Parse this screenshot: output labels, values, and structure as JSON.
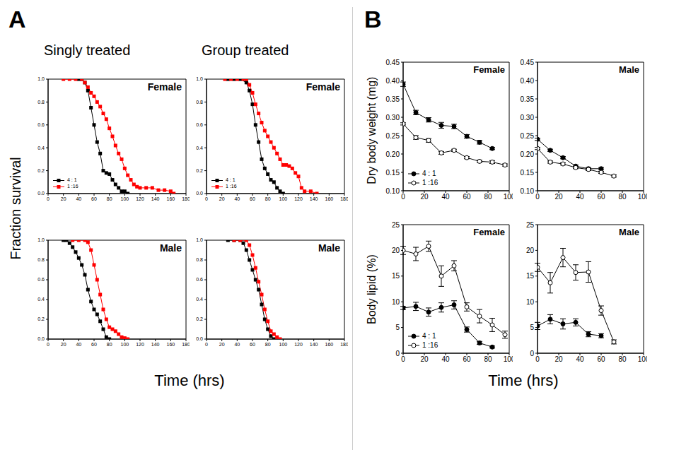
{
  "figure": {
    "panels": [
      {
        "label": "A",
        "column_titles": [
          "Singly treated",
          "Group treated"
        ],
        "y_label": "Fraction survival",
        "x_label": "Time (hrs)"
      },
      {
        "label": "B",
        "y_labels": [
          "Dry body weight (mg)",
          "Body lipid (%)"
        ],
        "x_label": "Time (hrs)"
      }
    ]
  },
  "chart_data": [
    {
      "type": "line",
      "title": "Female",
      "xlim": [
        0,
        180
      ],
      "xticks": [
        0,
        20,
        40,
        60,
        80,
        100,
        120,
        140,
        160,
        180
      ],
      "ylim": [
        0,
        1
      ],
      "yticks": [
        {
          "value": 0,
          "label": "0.0"
        },
        0.2,
        0.4,
        0.6,
        0.8,
        {
          "value": 1,
          "label": "1.0"
        }
      ],
      "legend": "lower left",
      "series": [
        {
          "name": "4 : 1",
          "color": "#000000",
          "marker": "square",
          "x": [
            40,
            44,
            48,
            52,
            56,
            60,
            64,
            68,
            72,
            76,
            80,
            84,
            88,
            92,
            96,
            100,
            104
          ],
          "values": [
            1,
            1,
            0.97,
            0.9,
            0.75,
            0.6,
            0.45,
            0.35,
            0.2,
            0.18,
            0.17,
            0.12,
            0.08,
            0.05,
            0.02,
            0.02,
            0
          ]
        },
        {
          "name": "1 :16",
          "color": "#ff0000",
          "marker": "square",
          "x": [
            20,
            28,
            36,
            44,
            48,
            52,
            56,
            60,
            64,
            68,
            72,
            76,
            80,
            84,
            88,
            92,
            96,
            100,
            104,
            108,
            112,
            116,
            120,
            128,
            136,
            144,
            152,
            160,
            164
          ],
          "values": [
            1,
            1,
            1,
            1,
            0.97,
            0.93,
            0.88,
            0.85,
            0.8,
            0.76,
            0.7,
            0.65,
            0.57,
            0.5,
            0.42,
            0.35,
            0.3,
            0.22,
            0.16,
            0.12,
            0.08,
            0.06,
            0.05,
            0.05,
            0.05,
            0.03,
            0.03,
            0.02,
            0
          ]
        }
      ]
    },
    {
      "type": "line",
      "title": "Female",
      "xlim": [
        0,
        180
      ],
      "xticks": [
        0,
        20,
        40,
        60,
        80,
        100,
        120,
        140,
        160,
        180
      ],
      "ylim": [
        0,
        1
      ],
      "yticks": [
        {
          "value": 0,
          "label": "0.0"
        },
        0.2,
        0.4,
        0.6,
        0.8,
        {
          "value": 1,
          "label": "1.0"
        }
      ],
      "legend": "lower left",
      "series": [
        {
          "name": "4 : 1",
          "color": "#000000",
          "marker": "square",
          "x": [
            28,
            36,
            44,
            52,
            56,
            60,
            64,
            68,
            72,
            76,
            80,
            84,
            88,
            92,
            96,
            100
          ],
          "values": [
            1,
            1,
            1,
            0.97,
            0.9,
            0.78,
            0.6,
            0.45,
            0.3,
            0.22,
            0.17,
            0.12,
            0.1,
            0.05,
            0.02,
            0
          ]
        },
        {
          "name": "1 :16",
          "color": "#ff0000",
          "marker": "square",
          "x": [
            24,
            32,
            40,
            48,
            52,
            56,
            60,
            64,
            68,
            72,
            76,
            80,
            84,
            88,
            92,
            96,
            100,
            104,
            108,
            112,
            116,
            120,
            124,
            128,
            136,
            144
          ],
          "values": [
            1,
            1,
            1,
            1,
            1,
            0.95,
            0.88,
            0.78,
            0.7,
            0.62,
            0.55,
            0.5,
            0.45,
            0.4,
            0.35,
            0.3,
            0.25,
            0.25,
            0.24,
            0.22,
            0.18,
            0.15,
            0.05,
            0.02,
            0.02,
            0
          ]
        }
      ]
    },
    {
      "type": "line",
      "title": "Male",
      "xlim": [
        0,
        180
      ],
      "xticks": [
        0,
        20,
        40,
        60,
        80,
        100,
        120,
        140,
        160,
        180
      ],
      "ylim": [
        0,
        1
      ],
      "yticks": [
        {
          "value": 0,
          "label": "0.0"
        },
        0.2,
        0.4,
        0.6,
        0.8,
        {
          "value": 1,
          "label": "1.0"
        }
      ],
      "series": [
        {
          "name": "4 : 1",
          "color": "#000000",
          "marker": "square",
          "x": [
            20,
            24,
            28,
            32,
            36,
            40,
            44,
            48,
            52,
            56,
            60,
            64,
            68,
            72,
            76,
            80
          ],
          "values": [
            1,
            1,
            0.97,
            0.93,
            0.88,
            0.82,
            0.75,
            0.65,
            0.5,
            0.38,
            0.3,
            0.25,
            0.18,
            0.1,
            0.02,
            0
          ]
        },
        {
          "name": "1 :16",
          "color": "#ff0000",
          "marker": "square",
          "x": [
            32,
            40,
            48,
            52,
            56,
            60,
            64,
            68,
            72,
            76,
            80,
            84,
            88,
            92,
            96,
            100,
            104
          ],
          "values": [
            1,
            1,
            1,
            0.98,
            0.9,
            0.75,
            0.6,
            0.45,
            0.3,
            0.2,
            0.12,
            0.1,
            0.08,
            0.05,
            0.02,
            0.01,
            0
          ]
        }
      ]
    },
    {
      "type": "line",
      "title": "Male",
      "xlim": [
        0,
        180
      ],
      "xticks": [
        0,
        20,
        40,
        60,
        80,
        100,
        120,
        140,
        160,
        180
      ],
      "ylim": [
        0,
        1
      ],
      "yticks": [
        {
          "value": 0,
          "label": "0.0"
        },
        0.2,
        0.4,
        0.6,
        0.8,
        {
          "value": 1,
          "label": "1.0"
        }
      ],
      "series": [
        {
          "name": "4 : 1",
          "color": "#000000",
          "marker": "square",
          "x": [
            28,
            36,
            44,
            48,
            52,
            56,
            60,
            64,
            68,
            72,
            76,
            80,
            84,
            88
          ],
          "values": [
            1,
            1,
            1,
            0.97,
            0.9,
            0.8,
            0.7,
            0.6,
            0.5,
            0.35,
            0.2,
            0.1,
            0.03,
            0
          ]
        },
        {
          "name": "1 :16",
          "color": "#ff0000",
          "marker": "square",
          "x": [
            36,
            44,
            52,
            56,
            60,
            64,
            68,
            72,
            76,
            80,
            84,
            88,
            92,
            96
          ],
          "values": [
            1,
            1,
            1,
            0.95,
            0.85,
            0.72,
            0.58,
            0.45,
            0.3,
            0.18,
            0.08,
            0.05,
            0.02,
            0
          ]
        }
      ]
    },
    {
      "type": "line",
      "title": "Female",
      "xlim": [
        0,
        100
      ],
      "xticks": [
        0,
        20,
        40,
        60,
        80,
        100
      ],
      "ylim": [
        0.1,
        0.45
      ],
      "yticks": [
        {
          "value": 0.1,
          "label": "0.10"
        },
        0.15,
        {
          "value": 0.2,
          "label": "0.20"
        },
        0.25,
        {
          "value": 0.3,
          "label": "0.30"
        },
        0.35,
        {
          "value": 0.4,
          "label": "0.40"
        },
        0.45
      ],
      "legend": "lower left",
      "series": [
        {
          "name": "4 : 1",
          "color": "#000000",
          "marker": "circle",
          "x": [
            0,
            12,
            24,
            36,
            48,
            60,
            72,
            84
          ],
          "values": [
            0.39,
            0.313,
            0.293,
            0.278,
            0.275,
            0.248,
            0.232,
            0.215
          ],
          "errors": [
            0.006,
            0.006,
            0.006,
            0.008,
            0.006,
            0.005,
            0.005,
            0.003
          ]
        },
        {
          "name": "1 :16",
          "color": "#000000",
          "marker": "circle_open",
          "x": [
            0,
            12,
            24,
            36,
            48,
            60,
            72,
            84,
            96
          ],
          "values": [
            0.282,
            0.245,
            0.237,
            0.203,
            0.21,
            0.19,
            0.18,
            0.178,
            0.17
          ],
          "errors": [
            0.003,
            0.005,
            0.005,
            0.004,
            0.003,
            0.003,
            0.003,
            0.004,
            0.003
          ]
        }
      ]
    },
    {
      "type": "line",
      "title": "Male",
      "xlim": [
        0,
        100
      ],
      "xticks": [
        0,
        20,
        40,
        60,
        80,
        100
      ],
      "ylim": [
        0.1,
        0.45
      ],
      "yticks": [
        {
          "value": 0.1,
          "label": "0.10"
        },
        0.15,
        {
          "value": 0.2,
          "label": "0.20"
        },
        0.25,
        {
          "value": 0.3,
          "label": "0.30"
        },
        0.35,
        {
          "value": 0.4,
          "label": "0.40"
        },
        0.45
      ],
      "series": [
        {
          "name": "4 : 1",
          "color": "#000000",
          "marker": "circle",
          "x": [
            0,
            12,
            24,
            36,
            48,
            60
          ],
          "values": [
            0.24,
            0.21,
            0.19,
            0.167,
            0.16,
            0.16
          ],
          "errors": [
            0.003,
            0.003,
            0.003,
            0.003,
            0.003,
            0.003
          ]
        },
        {
          "name": "1 :16",
          "color": "#000000",
          "marker": "circle_open",
          "x": [
            0,
            12,
            24,
            36,
            48,
            60,
            72
          ],
          "values": [
            0.215,
            0.178,
            0.173,
            0.163,
            0.158,
            0.15,
            0.14
          ],
          "errors": [
            0.003,
            0.003,
            0.003,
            0.003,
            0.003,
            0.003,
            0.003
          ]
        }
      ]
    },
    {
      "type": "line",
      "title": "Female",
      "xlim": [
        0,
        100
      ],
      "xticks": [
        0,
        20,
        40,
        60,
        80,
        100
      ],
      "ylim": [
        0,
        25
      ],
      "yticks": [
        0,
        5,
        10,
        15,
        20,
        25
      ],
      "legend": "lower left",
      "series": [
        {
          "name": "4 : 1",
          "color": "#000000",
          "marker": "circle",
          "x": [
            0,
            12,
            24,
            36,
            48,
            60,
            72,
            84
          ],
          "values": [
            8.8,
            9.1,
            8,
            8.9,
            9.4,
            4.6,
            2,
            1.2
          ],
          "errors": [
            0.3,
            0.8,
            0.8,
            0.9,
            0.8,
            0.5,
            0.3,
            0.2
          ]
        },
        {
          "name": "1 :16",
          "color": "#000000",
          "marker": "circle_open",
          "x": [
            0,
            12,
            24,
            36,
            48,
            60,
            72,
            84,
            96
          ],
          "values": [
            20,
            19.3,
            20.8,
            15,
            17,
            9,
            7.2,
            5.5,
            3.6
          ],
          "errors": [
            0.8,
            1.3,
            1,
            2,
            1,
            0.8,
            1.3,
            1.3,
            0.7
          ]
        }
      ]
    },
    {
      "type": "line",
      "title": "Male",
      "xlim": [
        0,
        100
      ],
      "xticks": [
        0,
        20,
        40,
        60,
        80,
        100
      ],
      "ylim": [
        0,
        25
      ],
      "yticks": [
        0,
        5,
        10,
        15,
        20,
        25
      ],
      "series": [
        {
          "name": "4 : 1",
          "color": "#000000",
          "marker": "circle",
          "x": [
            0,
            12,
            24,
            36,
            48,
            60
          ],
          "values": [
            5.3,
            6.6,
            5.7,
            6,
            3.7,
            3.4
          ],
          "errors": [
            0.7,
            0.9,
            1,
            0.7,
            0.5,
            0.4
          ]
        },
        {
          "name": "1 :16",
          "color": "#000000",
          "marker": "circle_open",
          "x": [
            0,
            12,
            24,
            36,
            48,
            60,
            72
          ],
          "values": [
            16.7,
            13.7,
            18.6,
            15.7,
            15.8,
            8.3,
            2.2
          ],
          "errors": [
            0.8,
            2,
            1.8,
            1.5,
            2,
            0.9,
            0.4
          ]
        }
      ]
    }
  ]
}
